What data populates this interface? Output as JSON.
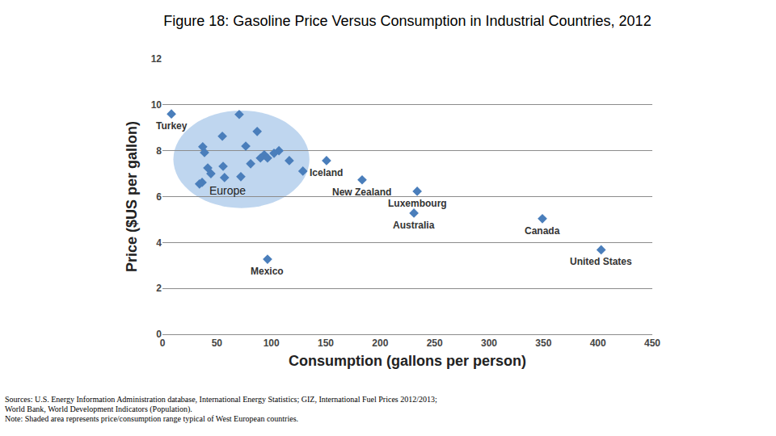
{
  "chart_data": {
    "type": "scatter",
    "title": "Figure 18: Gasoline Price Versus Consumption in Industrial Countries, 2012",
    "x_label": "Consumption (gallons per person)",
    "y_label": "Price ($US per gallon)",
    "x": [
      8.2,
      70.5,
      87,
      55,
      37,
      38.6,
      76.5,
      107,
      102.5,
      93.5,
      90,
      96.5,
      116.5,
      81,
      55.7,
      41.6,
      44.5,
      129,
      57,
      72,
      36.4,
      34,
      150.7,
      183.4,
      234,
      231,
      349,
      403,
      96.5
    ],
    "values": [
      9.6,
      9.58,
      8.84,
      8.63,
      8.17,
      7.92,
      8.2,
      8.0,
      7.89,
      7.82,
      7.68,
      7.68,
      7.57,
      7.43,
      7.32,
      7.25,
      7.0,
      7.11,
      6.83,
      6.87,
      6.62,
      6.55,
      7.57,
      6.73,
      6.23,
      5.28,
      5.04,
      3.68,
      3.27
    ],
    "labels": [
      "Turkey",
      null,
      null,
      null,
      null,
      null,
      null,
      null,
      null,
      null,
      null,
      null,
      null,
      null,
      null,
      null,
      null,
      null,
      null,
      null,
      null,
      null,
      "Iceland",
      "New Zealand",
      "Luxembourg",
      "Australia",
      "Canada",
      "United States",
      "Mexico"
    ],
    "color": "#4a7ebb",
    "marker": "diamond",
    "shaded_region": {
      "x": [
        10,
        135
      ],
      "y": [
        5.5,
        9.75
      ],
      "color": "#a9c8ea"
    },
    "annotations": [
      {
        "text": "Europe",
        "x": 60,
        "y": 6.25
      }
    ],
    "xlim": [
      0,
      450
    ],
    "xticks": [
      0,
      50,
      100,
      150,
      200,
      250,
      300,
      350,
      400,
      450
    ],
    "ylim": [
      0,
      12
    ],
    "yticks": [
      0,
      2,
      4,
      6,
      8,
      10,
      12
    ],
    "grid": true,
    "sources": [
      "Sources: U.S. Energy Information Administration database, International Energy Statistics; GIZ, International Fuel Prices 2012/2013;",
      "World Bank, World Development Indicators (Population)."
    ],
    "note": "Note: Shaded area represents price/consumption range typical of West European countries."
  }
}
